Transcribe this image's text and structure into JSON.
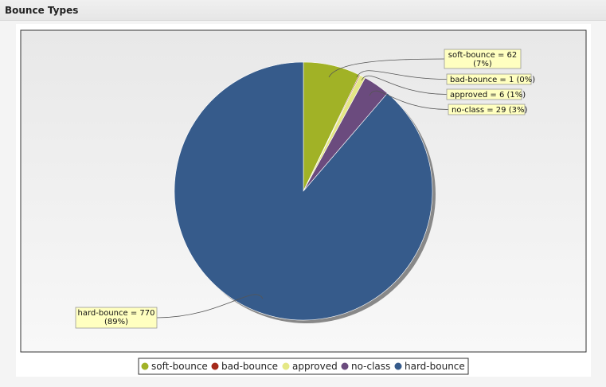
{
  "panel": {
    "title": "Bounce Types"
  },
  "colors": {
    "plot_bg_top": "#e8e8e8",
    "plot_bg_bottom": "#f8f8f8",
    "label_bg": "#ffffc0",
    "label_border": "#999999",
    "connector": "#555555"
  },
  "chart_data": {
    "type": "pie",
    "title": "",
    "start_angle_deg": 0,
    "direction": "clockwise",
    "slices": [
      {
        "name": "soft-bounce",
        "value": 62,
        "percent": "7%",
        "label": "soft-bounce = 62",
        "pct_label": "(7%)",
        "color": "#a1b226"
      },
      {
        "name": "bad-bounce",
        "value": 1,
        "percent": "0%",
        "label": "bad-bounce = 1 (0%)",
        "pct_label": "",
        "color": "#a5291a"
      },
      {
        "name": "approved",
        "value": 6,
        "percent": "1%",
        "label": "approved = 6 (1%)",
        "pct_label": "",
        "color": "#e5e885"
      },
      {
        "name": "no-class",
        "value": 29,
        "percent": "3%",
        "label": "no-class = 29 (3%)",
        "pct_label": "",
        "color": "#6b4b7e"
      },
      {
        "name": "hard-bounce",
        "value": 770,
        "percent": "89%",
        "label": "hard-bounce = 770",
        "pct_label": "(89%)",
        "color": "#365b8b"
      }
    ],
    "legend": {
      "position": "bottom",
      "entries": [
        "soft-bounce",
        "bad-bounce",
        "approved",
        "no-class",
        "hard-bounce"
      ]
    }
  }
}
